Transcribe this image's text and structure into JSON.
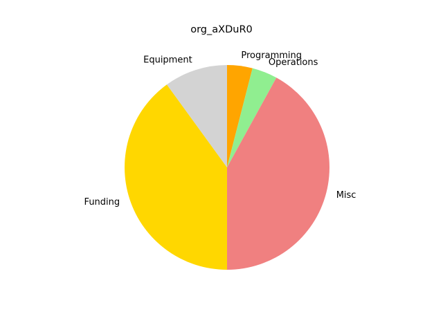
{
  "chart_data": {
    "type": "pie",
    "title": "org_aXDuR0",
    "start_angle_deg": 90,
    "direction": "clockwise",
    "slices": [
      {
        "label": "Programming",
        "value": 4,
        "color": "#FFA500"
      },
      {
        "label": "Operations",
        "value": 4,
        "color": "#90EE90"
      },
      {
        "label": "Misc",
        "value": 42,
        "color": "#F08080"
      },
      {
        "label": "Funding",
        "value": 40,
        "color": "#FFD700"
      },
      {
        "label": "Equipment",
        "value": 10,
        "color": "#D3D3D3"
      }
    ]
  }
}
